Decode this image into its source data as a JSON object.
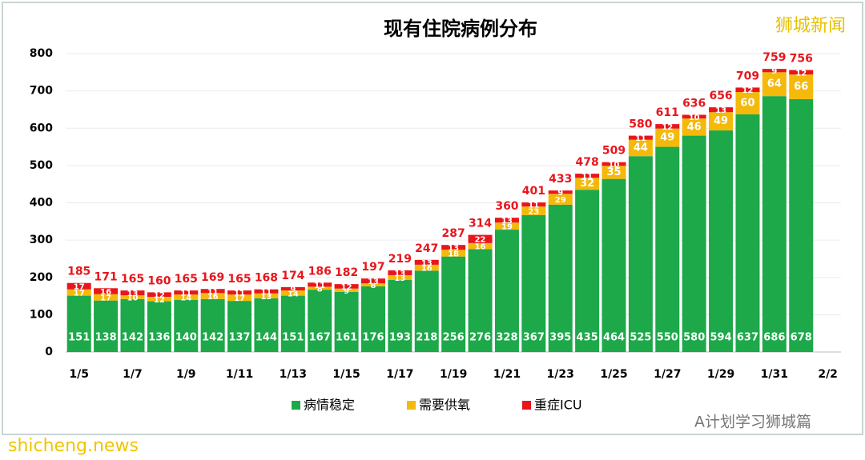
{
  "chart_data": {
    "type": "stacked-bar",
    "title": "现有住院病例分布",
    "categories": [
      "1/5",
      null,
      "1/7",
      null,
      "1/9",
      null,
      "1/11",
      null,
      "1/13",
      null,
      "1/15",
      null,
      "1/17",
      null,
      "1/19",
      null,
      "1/21",
      null,
      "1/23",
      null,
      "1/25",
      null,
      "1/27",
      null,
      "1/29",
      null,
      "1/31",
      null,
      "2/2"
    ],
    "series": [
      {
        "name": "病情稳定",
        "color": "#1da84a",
        "values": [
          151,
          138,
          142,
          136,
          140,
          142,
          137,
          144,
          151,
          167,
          161,
          176,
          193,
          218,
          256,
          276,
          328,
          367,
          395,
          435,
          464,
          525,
          550,
          580,
          594,
          637,
          686,
          678,
          null
        ]
      },
      {
        "name": "需要供氧",
        "color": "#f4b90b",
        "values": [
          17,
          17,
          10,
          12,
          14,
          16,
          17,
          13,
          14,
          8,
          9,
          8,
          13,
          16,
          18,
          16,
          19,
          23,
          29,
          32,
          35,
          44,
          49,
          46,
          49,
          60,
          64,
          66,
          null
        ]
      },
      {
        "name": "重症ICU",
        "color": "#e8161c",
        "values": [
          17,
          16,
          13,
          12,
          11,
          11,
          11,
          11,
          9,
          11,
          12,
          13,
          13,
          13,
          13,
          22,
          13,
          11,
          9,
          11,
          10,
          11,
          12,
          10,
          13,
          12,
          9,
          12,
          null
        ]
      }
    ],
    "totals": [
      185,
      171,
      165,
      160,
      165,
      169,
      165,
      168,
      174,
      186,
      182,
      197,
      219,
      247,
      287,
      314,
      360,
      401,
      433,
      478,
      509,
      580,
      611,
      636,
      656,
      709,
      759,
      756,
      null
    ],
    "ylim": [
      0,
      800
    ],
    "yticks": [
      0,
      100,
      200,
      300,
      400,
      500,
      600,
      700,
      800
    ],
    "grid": true,
    "legend": "bottom"
  },
  "watermarks": {
    "source": "狮城新闻",
    "account": "A计划学习狮城篇",
    "site": "shicheng.news"
  }
}
